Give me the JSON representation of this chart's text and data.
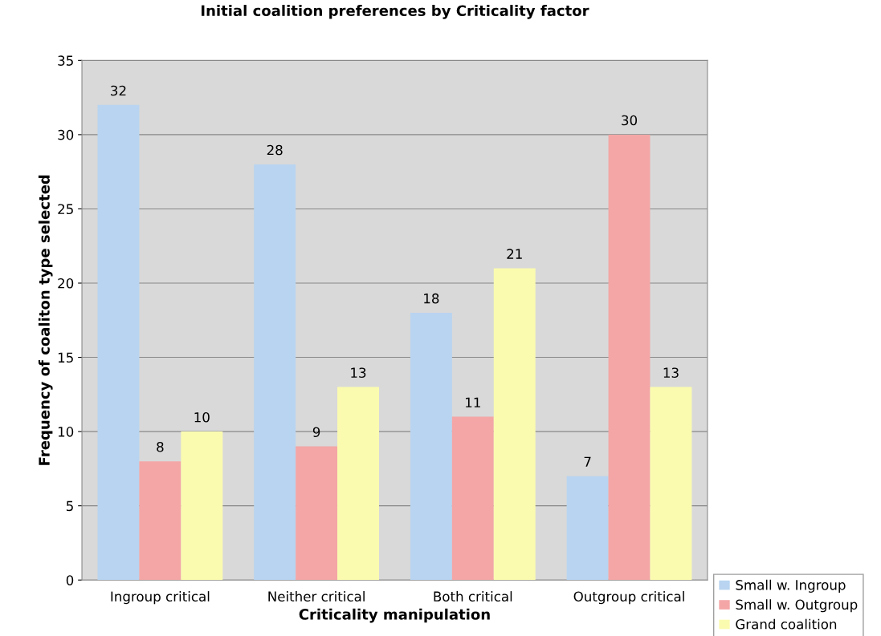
{
  "chart_data": {
    "type": "bar",
    "title": "Initial coalition preferences by Criticality factor",
    "xlabel": "Criticality manipulation",
    "ylabel": "Frequency of coaliton type selected",
    "categories": [
      "Ingroup critical",
      "Neither critical",
      "Both critical",
      "Outgroup critical"
    ],
    "series": [
      {
        "name": "Small w. Ingroup",
        "color": "#b8d4f0",
        "values": [
          32,
          28,
          18,
          7
        ]
      },
      {
        "name": "Small w. Outgroup",
        "color": "#f4a6a6",
        "values": [
          8,
          9,
          11,
          30
        ]
      },
      {
        "name": "Grand coalition",
        "color": "#fbfbb0",
        "values": [
          10,
          13,
          21,
          13
        ]
      }
    ],
    "ylim": [
      0,
      35
    ],
    "yticks": [
      0,
      5,
      10,
      15,
      20,
      25,
      30,
      35
    ],
    "grid": "y",
    "legend": "bottom right",
    "data_labels": true
  }
}
